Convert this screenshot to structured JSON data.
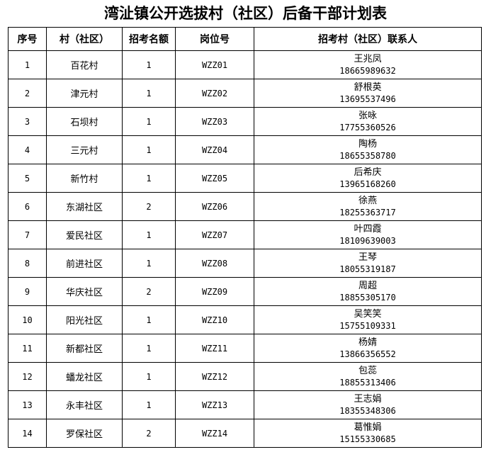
{
  "title": "湾沚镇公开选拔村（社区）后备干部计划表",
  "headers": [
    "序号",
    "村（社区）",
    "招考名额",
    "岗位号",
    "招考村（社区）联系人"
  ],
  "rows": [
    {
      "no": "1",
      "village": "百花村",
      "quota": "1",
      "post": "WZZ01",
      "contact": "王兆凤",
      "phone": "18665989632"
    },
    {
      "no": "2",
      "village": "津元村",
      "quota": "1",
      "post": "WZZ02",
      "contact": "舒根英",
      "phone": "13695537496"
    },
    {
      "no": "3",
      "village": "石坝村",
      "quota": "1",
      "post": "WZZ03",
      "contact": "张咏",
      "phone": "17755360526"
    },
    {
      "no": "4",
      "village": "三元村",
      "quota": "1",
      "post": "WZZ04",
      "contact": "陶杨",
      "phone": "18655358780"
    },
    {
      "no": "5",
      "village": "新竹村",
      "quota": "1",
      "post": "WZZ05",
      "contact": "后希庆",
      "phone": "13965168260"
    },
    {
      "no": "6",
      "village": "东湖社区",
      "quota": "2",
      "post": "WZZ06",
      "contact": "徐燕",
      "phone": "18255363717"
    },
    {
      "no": "7",
      "village": "爱民社区",
      "quota": "1",
      "post": "WZZ07",
      "contact": "叶四霞",
      "phone": "18109639003"
    },
    {
      "no": "8",
      "village": "前进社区",
      "quota": "1",
      "post": "WZZ08",
      "contact": "王琴",
      "phone": "18055319187"
    },
    {
      "no": "9",
      "village": "华庆社区",
      "quota": "2",
      "post": "WZZ09",
      "contact": "周超",
      "phone": "18855305170"
    },
    {
      "no": "10",
      "village": "阳光社区",
      "quota": "1",
      "post": "WZZ10",
      "contact": "吴笑笑",
      "phone": "15755109331"
    },
    {
      "no": "11",
      "village": "新都社区",
      "quota": "1",
      "post": "WZZ11",
      "contact": "杨婧",
      "phone": "13866356552"
    },
    {
      "no": "12",
      "village": "蟠龙社区",
      "quota": "1",
      "post": "WZZ12",
      "contact": "包蕊",
      "phone": "18855313406"
    },
    {
      "no": "13",
      "village": "永丰社区",
      "quota": "1",
      "post": "WZZ13",
      "contact": "王志娟",
      "phone": "18355348306"
    },
    {
      "no": "14",
      "village": "罗保社区",
      "quota": "2",
      "post": "WZZ14",
      "contact": "葛惟娟",
      "phone": "15155330685"
    }
  ]
}
